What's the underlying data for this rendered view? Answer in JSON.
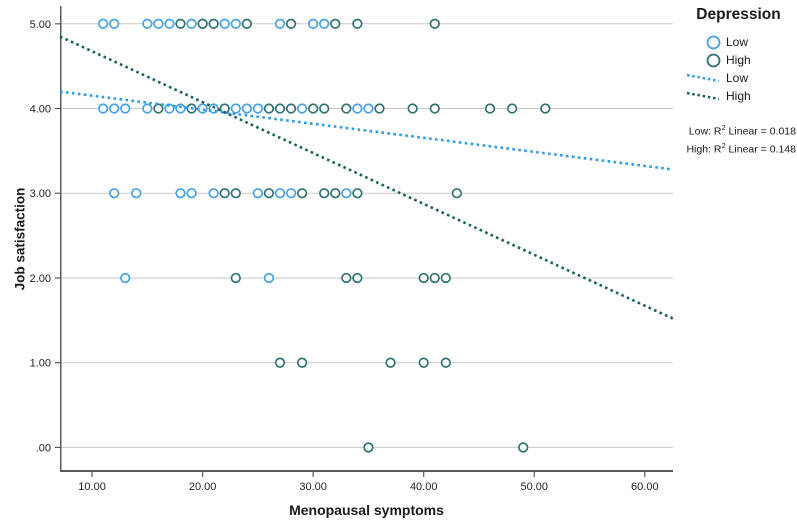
{
  "chart_data": {
    "type": "scatter",
    "xlabel": "Menopausal symptoms",
    "ylabel": "Job satisfaction",
    "xlim": [
      7.1,
      62.55
    ],
    "ylim": [
      -0.29,
      5.21
    ],
    "grid": "horizontal-only",
    "x_ticks": [
      {
        "value": 10,
        "label": "10.00"
      },
      {
        "value": 20,
        "label": "20.00"
      },
      {
        "value": 30,
        "label": "30.00"
      },
      {
        "value": 40,
        "label": "40.00"
      },
      {
        "value": 50,
        "label": "50.00"
      },
      {
        "value": 60,
        "label": "60.00"
      }
    ],
    "y_ticks": [
      {
        "value": 5,
        "label": "5.00"
      },
      {
        "value": 4,
        "label": "4.00"
      },
      {
        "value": 3,
        "label": "3.00"
      },
      {
        "value": 2,
        "label": "2.00"
      },
      {
        "value": 1,
        "label": "1.00"
      },
      {
        "value": 0,
        "label": ".00"
      }
    ],
    "series": [
      {
        "name": "Low",
        "marker": "open-circle",
        "color": "#47a2e5",
        "points": [
          [
            11,
            5
          ],
          [
            12,
            5
          ],
          [
            15,
            5
          ],
          [
            16,
            5
          ],
          [
            17,
            5
          ],
          [
            19,
            5
          ],
          [
            20,
            5
          ],
          [
            22,
            5
          ],
          [
            23,
            5
          ],
          [
            27,
            5
          ],
          [
            30,
            5
          ],
          [
            31,
            5
          ],
          [
            11,
            4
          ],
          [
            12,
            4
          ],
          [
            13,
            4
          ],
          [
            15,
            4
          ],
          [
            17,
            4
          ],
          [
            18,
            4
          ],
          [
            20,
            4
          ],
          [
            21,
            4
          ],
          [
            23,
            4
          ],
          [
            24,
            4
          ],
          [
            25,
            4
          ],
          [
            29,
            4
          ],
          [
            34,
            4
          ],
          [
            35,
            4
          ],
          [
            12,
            3
          ],
          [
            14,
            3
          ],
          [
            18,
            3
          ],
          [
            19,
            3
          ],
          [
            21,
            3
          ],
          [
            25,
            3
          ],
          [
            27,
            3
          ],
          [
            28,
            3
          ],
          [
            33,
            3
          ],
          [
            13,
            2
          ],
          [
            26,
            2
          ]
        ]
      },
      {
        "name": "High",
        "marker": "open-circle",
        "color": "#2f7472",
        "points": [
          [
            18,
            5
          ],
          [
            20,
            5
          ],
          [
            21,
            5
          ],
          [
            24,
            5
          ],
          [
            28,
            5
          ],
          [
            32,
            5
          ],
          [
            34,
            5
          ],
          [
            41,
            5
          ],
          [
            16,
            4
          ],
          [
            19,
            4
          ],
          [
            22,
            4
          ],
          [
            26,
            4
          ],
          [
            27,
            4
          ],
          [
            28,
            4
          ],
          [
            30,
            4
          ],
          [
            31,
            4
          ],
          [
            33,
            4
          ],
          [
            36,
            4
          ],
          [
            39,
            4
          ],
          [
            41,
            4
          ],
          [
            46,
            4
          ],
          [
            48,
            4
          ],
          [
            51,
            4
          ],
          [
            22,
            3
          ],
          [
            23,
            3
          ],
          [
            26,
            3
          ],
          [
            29,
            3
          ],
          [
            31,
            3
          ],
          [
            32,
            3
          ],
          [
            34,
            3
          ],
          [
            43,
            3
          ],
          [
            23,
            2
          ],
          [
            33,
            2
          ],
          [
            34,
            2
          ],
          [
            40,
            2
          ],
          [
            41,
            2
          ],
          [
            42,
            2
          ],
          [
            27,
            1
          ],
          [
            29,
            1
          ],
          [
            37,
            1
          ],
          [
            40,
            1
          ],
          [
            42,
            1
          ],
          [
            35,
            0
          ],
          [
            49,
            0
          ]
        ]
      }
    ],
    "fit_lines": [
      {
        "name": "Low",
        "color": "#2d9ce8",
        "x1": 7.1,
        "y1": 4.2,
        "x2": 62.55,
        "y2": 3.28
      },
      {
        "name": "High",
        "color": "#176160",
        "x1": 7.1,
        "y1": 4.85,
        "x2": 62.55,
        "y2": 1.52
      }
    ],
    "colors": {
      "grid": "#c9c9c9",
      "axis": "#5a5a5a",
      "marker_fill": "#ffffff"
    },
    "legend_position": "right"
  },
  "legend": {
    "title": "Depression",
    "items": [
      {
        "label": "Low",
        "marker": "circle",
        "color": "#47a2e5"
      },
      {
        "label": "High",
        "marker": "circle",
        "color": "#2f7472"
      },
      {
        "label": "Low",
        "marker": "dashed-line",
        "color": "#2d9ce8"
      },
      {
        "label": "High",
        "marker": "dashed-line",
        "color": "#176160"
      }
    ],
    "annotations": {
      "low": {
        "pre": "Low: R",
        "sup": "2",
        "post": " Linear = 0.018"
      },
      "high": {
        "pre": "High: R",
        "sup": "2",
        "post": " Linear = 0.148"
      }
    }
  }
}
